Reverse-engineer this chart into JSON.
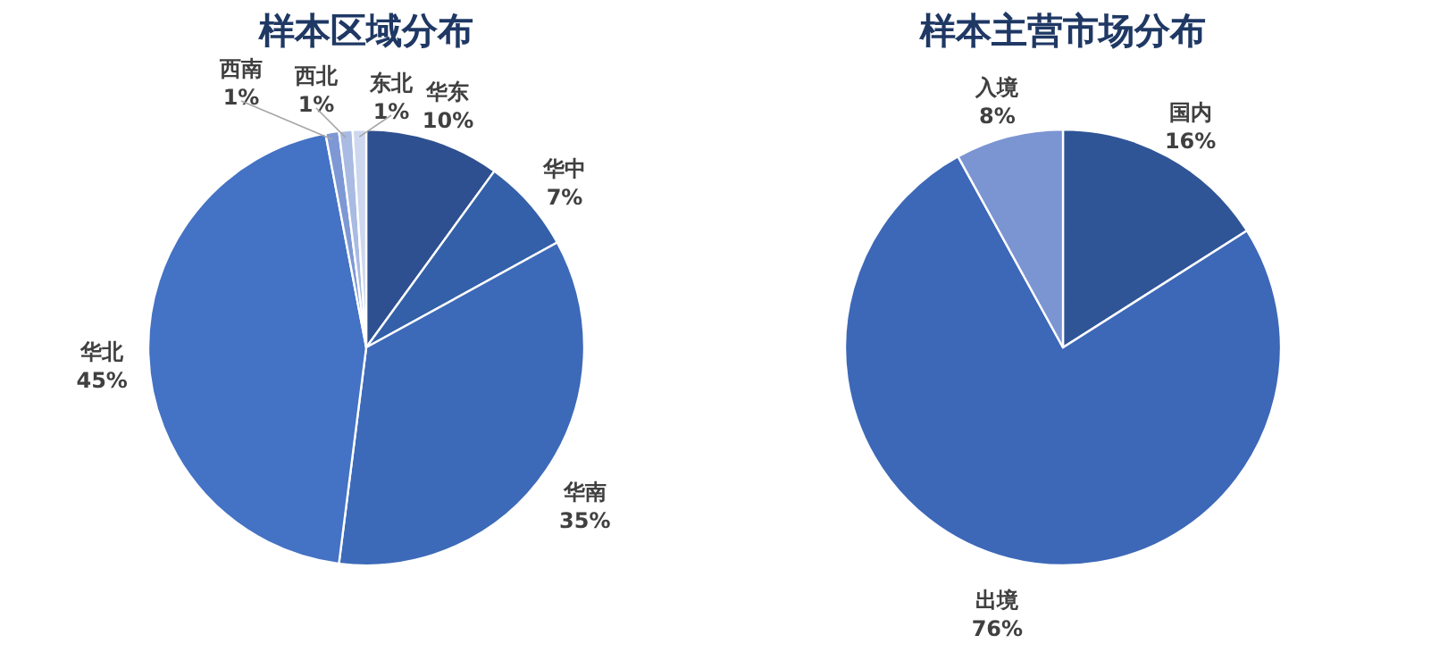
{
  "chart_data": [
    {
      "type": "pie",
      "title": "样本区域分布",
      "categories": [
        "华东",
        "华中",
        "华南",
        "华北",
        "西南",
        "西北",
        "东北"
      ],
      "values": [
        10,
        7,
        35,
        45,
        1,
        1,
        1
      ],
      "value_labels": [
        "10%",
        "7%",
        "35%",
        "45%",
        "1%",
        "1%",
        "1%"
      ],
      "colors": [
        "#2f5090",
        "#3360a8",
        "#3d6ab8",
        "#4472c4",
        "#7d98d4",
        "#a9bbe3",
        "#cdd7ef"
      ]
    },
    {
      "type": "pie",
      "title": "样本主营市场分布",
      "categories": [
        "国内",
        "出境",
        "入境"
      ],
      "values": [
        16,
        76,
        8
      ],
      "value_labels": [
        "16%",
        "76%",
        "8%"
      ],
      "colors": [
        "#2f5597",
        "#3d68b8",
        "#7b94d2"
      ]
    }
  ]
}
